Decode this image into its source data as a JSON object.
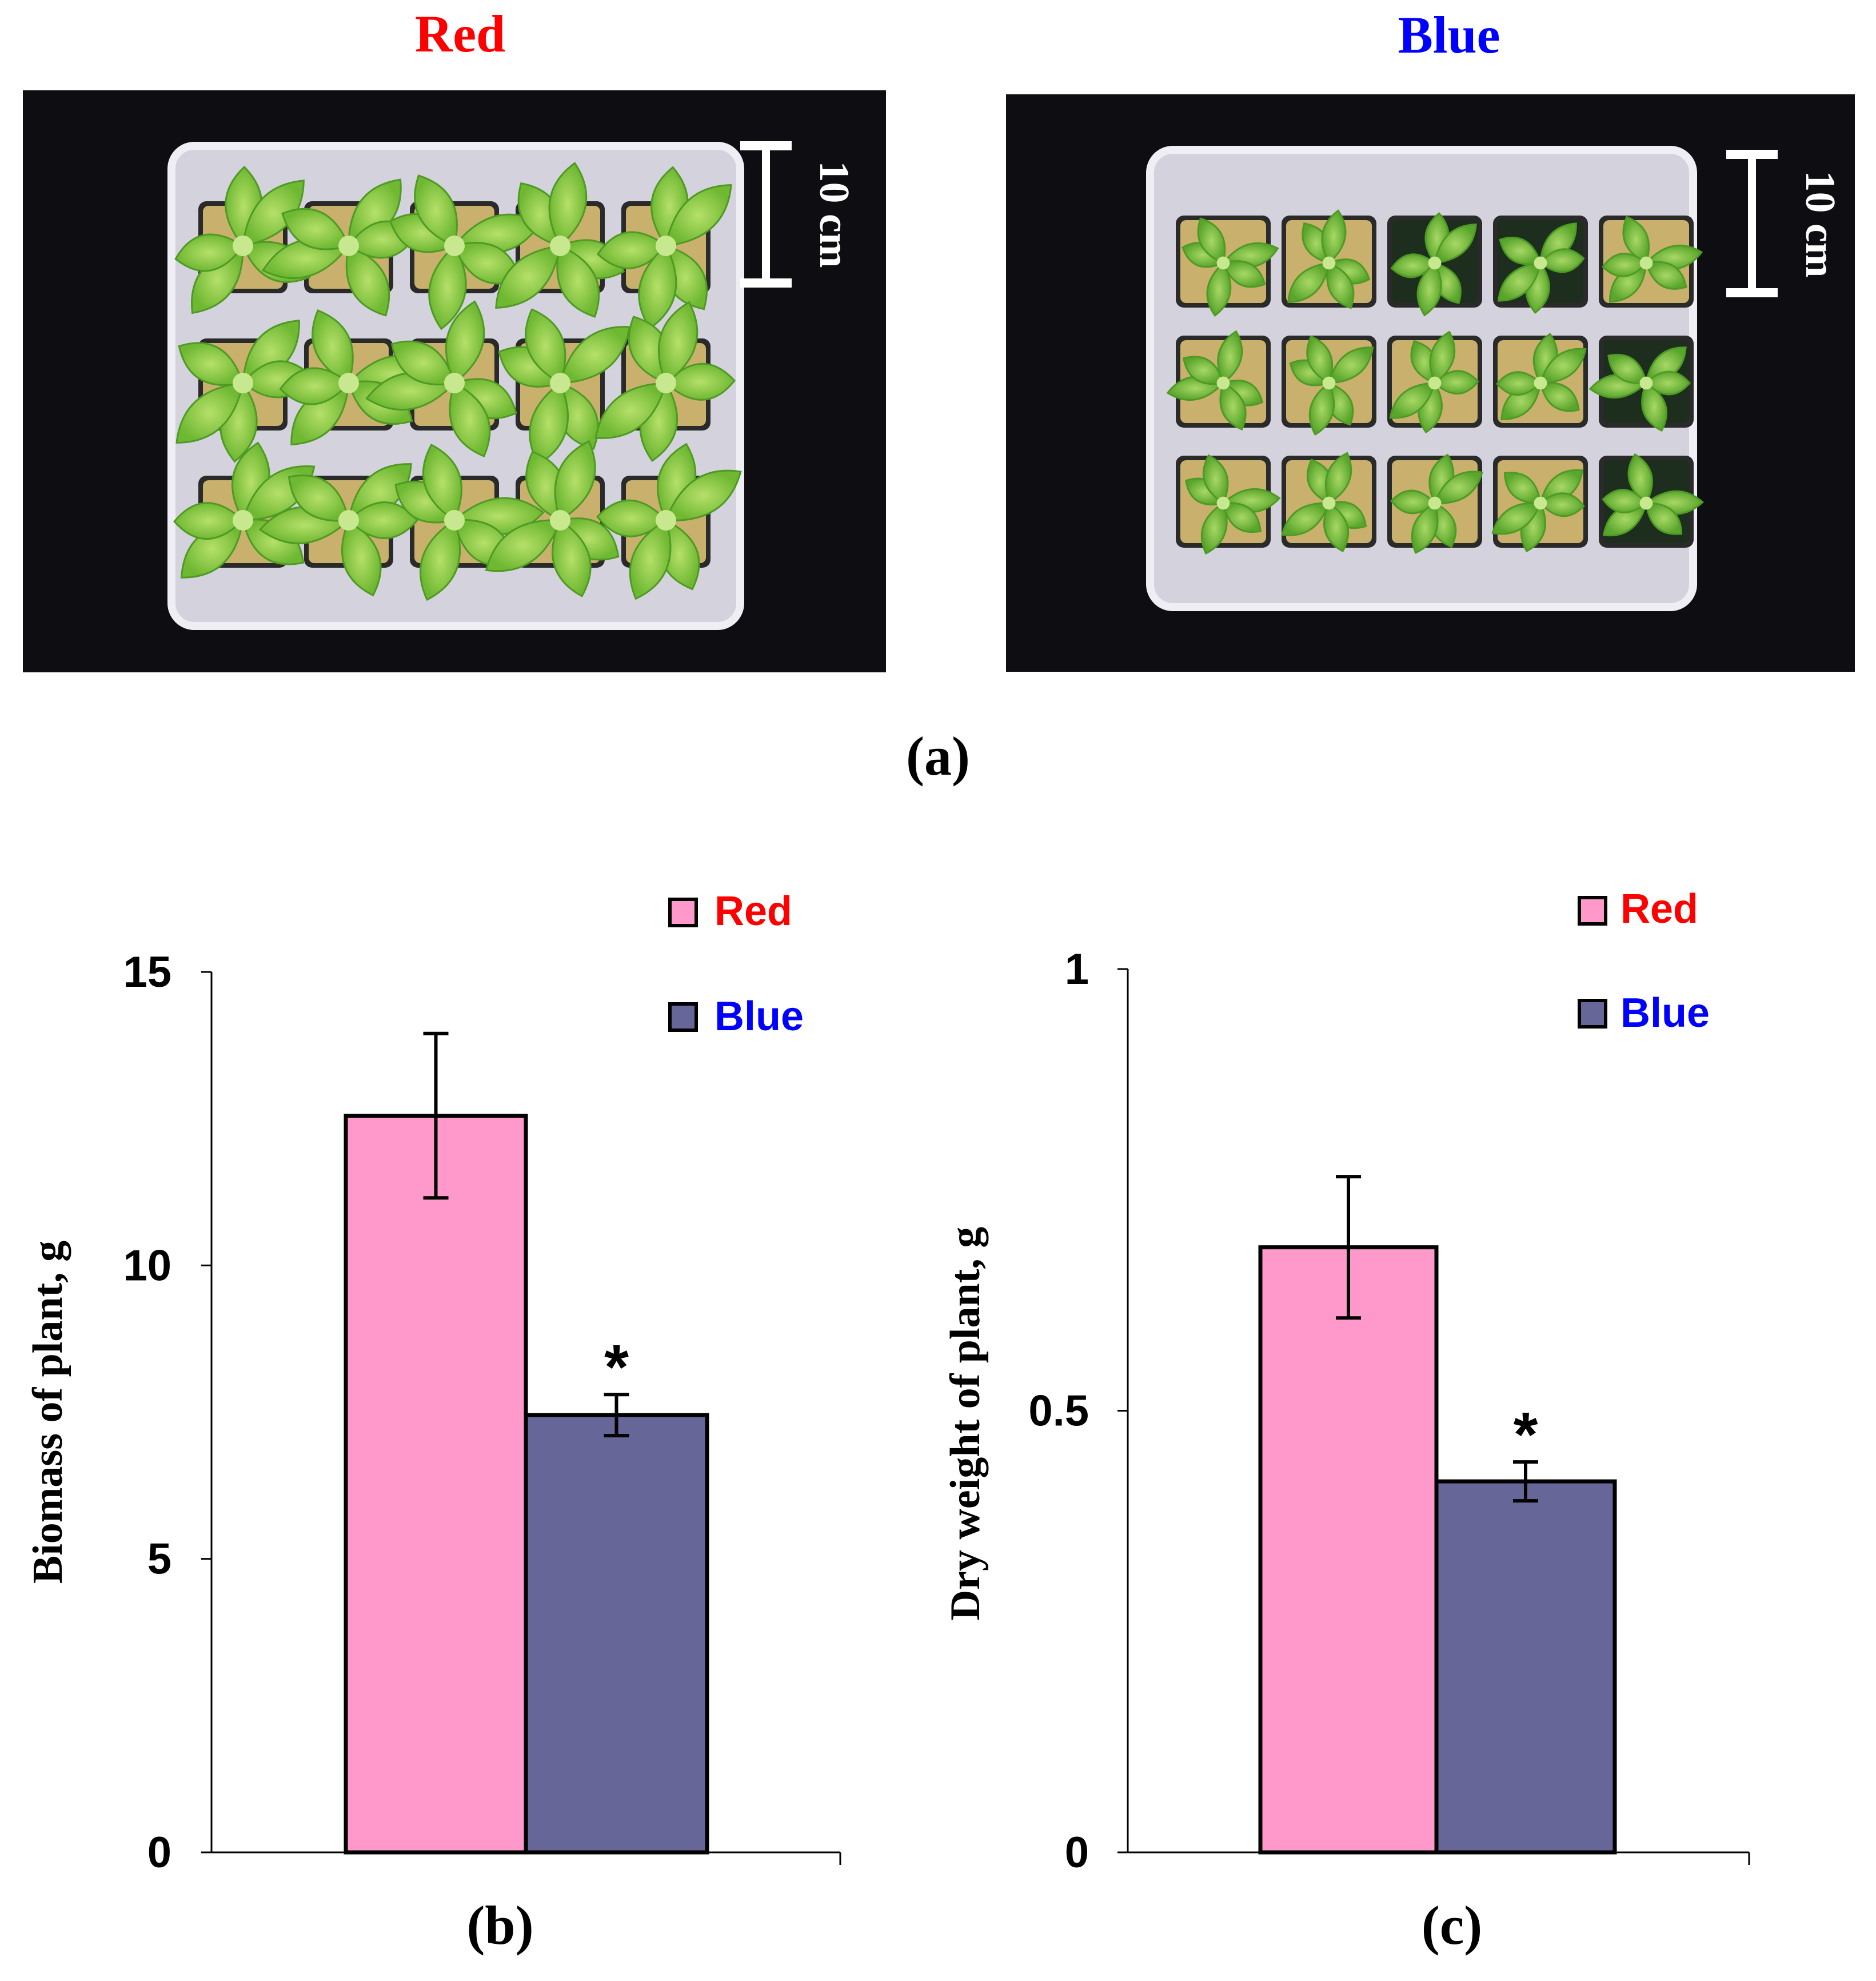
{
  "panel_a": {
    "label": "(a)",
    "photos": [
      {
        "title": "Red",
        "title_color": "#ff0000",
        "scale_label": "10 cm"
      },
      {
        "title": "Blue",
        "title_color": "#0000ff",
        "scale_label": "10 cm"
      }
    ]
  },
  "colors": {
    "red_bar": "#ff99cc",
    "blue_bar": "#666699",
    "red_text": "#ff0000",
    "blue_text": "#0000ff"
  },
  "chart_data": [
    {
      "type": "bar",
      "panel_label": "(b)",
      "ylabel": "Biomass of plant, g",
      "ylim": [
        0,
        15
      ],
      "yticks": [
        0,
        5,
        10,
        15
      ],
      "ytick_labels": [
        "0",
        "5",
        "10",
        "15"
      ],
      "legend": [
        "Red",
        "Blue"
      ],
      "legend_position": "top-right",
      "series": [
        {
          "name": "Red",
          "value": 12.55,
          "error": 1.4,
          "marker": ""
        },
        {
          "name": "Blue",
          "value": 7.45,
          "error": 0.35,
          "marker": "*"
        }
      ]
    },
    {
      "type": "bar",
      "panel_label": "(c)",
      "ylabel": "Dry weight of plant, g",
      "ylim": [
        0,
        1
      ],
      "yticks": [
        0,
        0.5,
        1
      ],
      "ytick_labels": [
        "0",
        "0.5",
        "1"
      ],
      "legend": [
        "Red",
        "Blue"
      ],
      "legend_position": "top-right",
      "series": [
        {
          "name": "Red",
          "value": 0.685,
          "error": 0.08,
          "marker": ""
        },
        {
          "name": "Blue",
          "value": 0.42,
          "error": 0.022,
          "marker": "*"
        }
      ]
    }
  ]
}
